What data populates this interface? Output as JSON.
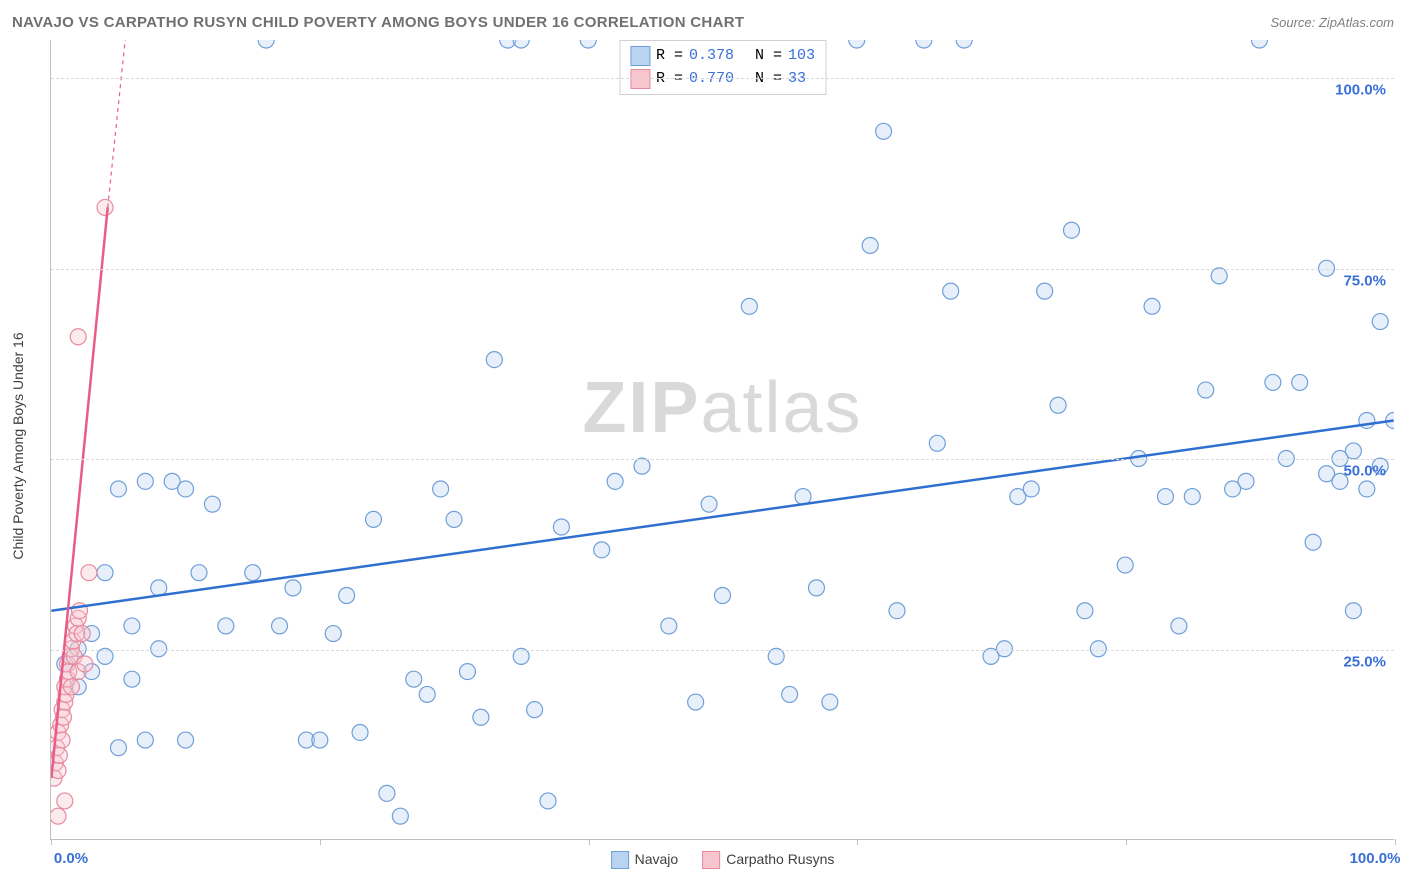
{
  "header": {
    "title": "NAVAJO VS CARPATHO RUSYN CHILD POVERTY AMONG BOYS UNDER 16 CORRELATION CHART",
    "source": "Source: ZipAtlas.com"
  },
  "watermark": {
    "pre": "ZIP",
    "post": "atlas"
  },
  "chart": {
    "type": "scatter",
    "ylabel": "Child Poverty Among Boys Under 16",
    "xlim": [
      0,
      100
    ],
    "ylim": [
      0,
      105
    ],
    "x_ticks": [
      0,
      20,
      40,
      60,
      80,
      100
    ],
    "x_tick_labels": {
      "0": "0.0%",
      "100": "100.0%"
    },
    "y_gridlines": [
      25,
      50,
      75,
      100
    ],
    "y_tick_labels": {
      "25": "25.0%",
      "50": "50.0%",
      "75": "75.0%",
      "100": "100.0%"
    },
    "grid_color": "#d9d9d9",
    "background_color": "#ffffff",
    "axis_color": "#c0c0c0",
    "marker_radius": 8,
    "marker_stroke_width": 1.2,
    "marker_fill_opacity": 0.35,
    "trend_line_width": 2.5,
    "trend_dash_width": 1.2,
    "xlabel_color": "#3a6fd8",
    "ylabel_color": "#3a6fd8"
  },
  "series": {
    "navajo": {
      "label": "Navajo",
      "color_fill": "#b9d3f0",
      "color_stroke": "#6f9fd8",
      "trend_color": "#2f6fd0",
      "R": "0.378",
      "N": "103",
      "trend": {
        "x1": 0,
        "y1": 30,
        "x2": 100,
        "y2": 55
      },
      "points": [
        [
          1,
          23
        ],
        [
          2,
          25
        ],
        [
          3,
          22
        ],
        [
          3,
          27
        ],
        [
          4,
          35
        ],
        [
          5,
          46
        ],
        [
          5,
          12
        ],
        [
          6,
          28
        ],
        [
          7,
          47
        ],
        [
          8,
          33
        ],
        [
          9,
          47
        ],
        [
          10,
          46
        ],
        [
          10,
          13
        ],
        [
          11,
          35
        ],
        [
          12,
          44
        ],
        [
          13,
          28
        ],
        [
          15,
          35
        ],
        [
          16,
          105
        ],
        [
          17,
          28
        ],
        [
          19,
          13
        ],
        [
          20,
          13
        ],
        [
          21,
          27
        ],
        [
          22,
          32
        ],
        [
          23,
          14
        ],
        [
          24,
          42
        ],
        [
          25,
          6
        ],
        [
          27,
          21
        ],
        [
          28,
          19
        ],
        [
          30,
          42
        ],
        [
          31,
          22
        ],
        [
          32,
          16
        ],
        [
          33,
          63
        ],
        [
          34,
          105
        ],
        [
          35,
          24
        ],
        [
          35,
          105
        ],
        [
          36,
          17
        ],
        [
          38,
          41
        ],
        [
          40,
          105
        ],
        [
          41,
          38
        ],
        [
          42,
          47
        ],
        [
          44,
          49
        ],
        [
          46,
          28
        ],
        [
          48,
          18
        ],
        [
          49,
          44
        ],
        [
          50,
          32
        ],
        [
          52,
          70
        ],
        [
          54,
          24
        ],
        [
          55,
          19
        ],
        [
          56,
          45
        ],
        [
          57,
          33
        ],
        [
          58,
          18
        ],
        [
          60,
          105
        ],
        [
          61,
          78
        ],
        [
          62,
          93
        ],
        [
          63,
          30
        ],
        [
          65,
          105
        ],
        [
          66,
          52
        ],
        [
          67,
          72
        ],
        [
          68,
          105
        ],
        [
          70,
          24
        ],
        [
          71,
          25
        ],
        [
          72,
          45
        ],
        [
          73,
          46
        ],
        [
          74,
          72
        ],
        [
          75,
          57
        ],
        [
          76,
          80
        ],
        [
          77,
          30
        ],
        [
          78,
          25
        ],
        [
          80,
          36
        ],
        [
          81,
          50
        ],
        [
          82,
          70
        ],
        [
          83,
          45
        ],
        [
          84,
          28
        ],
        [
          85,
          45
        ],
        [
          86,
          59
        ],
        [
          87,
          74
        ],
        [
          88,
          46
        ],
        [
          89,
          47
        ],
        [
          90,
          105
        ],
        [
          91,
          60
        ],
        [
          92,
          50
        ],
        [
          93,
          60
        ],
        [
          94,
          39
        ],
        [
          95,
          48
        ],
        [
          95,
          75
        ],
        [
          96,
          50
        ],
        [
          96,
          47
        ],
        [
          97,
          51
        ],
        [
          97,
          30
        ],
        [
          98,
          46
        ],
        [
          98,
          55
        ],
        [
          99,
          49
        ],
        [
          99,
          68
        ],
        [
          100,
          55
        ],
        [
          2,
          20
        ],
        [
          4,
          24
        ],
        [
          6,
          21
        ],
        [
          8,
          25
        ],
        [
          18,
          33
        ],
        [
          26,
          3
        ],
        [
          29,
          46
        ],
        [
          37,
          5
        ],
        [
          7,
          13
        ]
      ]
    },
    "carpatho": {
      "label": "Carpatho Rusyns",
      "color_fill": "#f6c5ce",
      "color_stroke": "#e78aa0",
      "trend_color": "#e95c87",
      "R": "0.770",
      "N": "33",
      "trend_solid": {
        "x1": 0,
        "y1": 8,
        "x2": 4.2,
        "y2": 83
      },
      "trend_dash": {
        "x1": 4.2,
        "y1": 83,
        "x2": 5.5,
        "y2": 105
      },
      "points": [
        [
          0.2,
          8
        ],
        [
          0.3,
          10
        ],
        [
          0.4,
          12
        ],
        [
          0.5,
          9
        ],
        [
          0.5,
          14
        ],
        [
          0.6,
          11
        ],
        [
          0.7,
          15
        ],
        [
          0.8,
          13
        ],
        [
          0.8,
          17
        ],
        [
          0.9,
          16
        ],
        [
          1.0,
          18
        ],
        [
          1.0,
          20
        ],
        [
          1.1,
          19
        ],
        [
          1.2,
          21
        ],
        [
          1.2,
          23
        ],
        [
          1.3,
          22
        ],
        [
          1.4,
          24
        ],
        [
          1.5,
          25
        ],
        [
          1.5,
          20
        ],
        [
          1.6,
          26
        ],
        [
          1.7,
          24
        ],
        [
          1.8,
          28
        ],
        [
          1.9,
          27
        ],
        [
          2.0,
          29
        ],
        [
          2.0,
          22
        ],
        [
          2.1,
          30
        ],
        [
          2.3,
          27
        ],
        [
          2.5,
          23
        ],
        [
          2.8,
          35
        ],
        [
          0.5,
          3
        ],
        [
          1.0,
          5
        ],
        [
          2.0,
          66
        ],
        [
          4.0,
          83
        ]
      ]
    }
  },
  "legend_bottom": {
    "items": [
      {
        "key": "navajo"
      },
      {
        "key": "carpatho"
      }
    ]
  },
  "corr_box": {
    "r_label": "R =",
    "n_label": "N =",
    "value_color": "#3a6fd8"
  }
}
